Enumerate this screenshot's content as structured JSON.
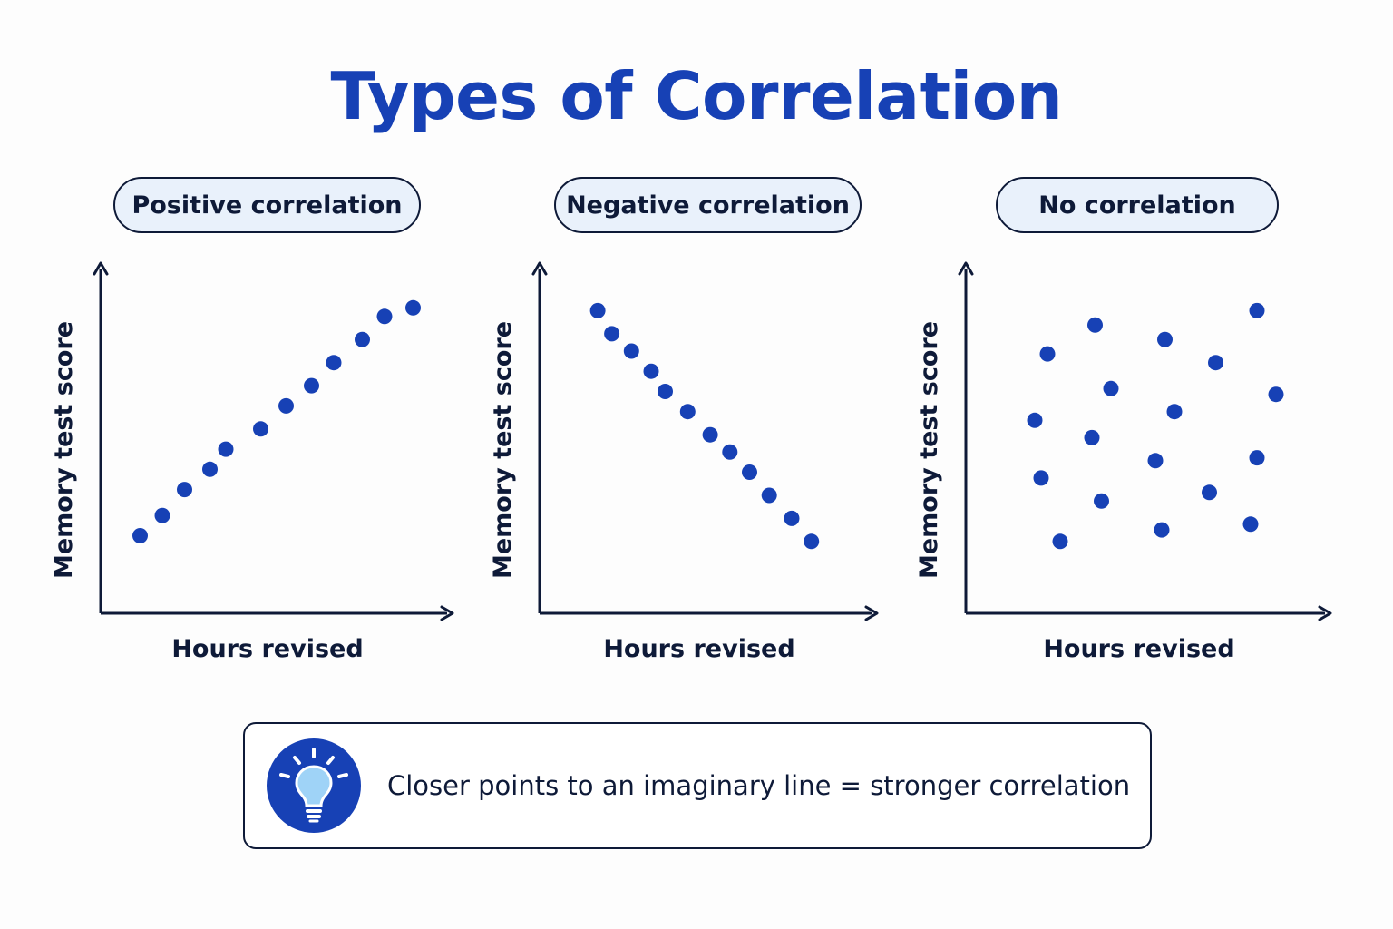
{
  "title": "Types of Correlation",
  "colors": {
    "accent": "#1741b5",
    "dot": "#1741b5",
    "ink": "#0e1a38",
    "pill_bg": "#e9f1fb",
    "bulb": "#9fd3f7"
  },
  "panels": [
    {
      "label": "Positive correlation"
    },
    {
      "label": "Negative correlation"
    },
    {
      "label": "No correlation"
    }
  ],
  "tip": {
    "icon": "lightbulb-icon",
    "text": "Closer points to an imaginary line = stronger correlation"
  },
  "chart_data": [
    {
      "type": "scatter",
      "title": "Positive correlation",
      "xlabel": "Hours revised",
      "ylabel": "Memory test score",
      "xlim": [
        0,
        100
      ],
      "ylim": [
        0,
        100
      ],
      "grid": false,
      "x": [
        7,
        14,
        21,
        29,
        34,
        45,
        53,
        61,
        68,
        77,
        84,
        93
      ],
      "y": [
        14,
        21,
        30,
        37,
        44,
        51,
        59,
        66,
        74,
        82,
        90,
        93
      ]
    },
    {
      "type": "scatter",
      "title": "Negative correlation",
      "xlabel": "Hours revised",
      "ylabel": "Memory test score",
      "xlim": [
        0,
        100
      ],
      "ylim": [
        0,
        100
      ],
      "grid": false,
      "x": [
        11,
        16,
        23,
        30,
        35,
        43,
        51,
        58,
        65,
        72,
        80,
        87
      ],
      "y": [
        92,
        84,
        78,
        71,
        64,
        57,
        49,
        43,
        36,
        28,
        20,
        12
      ]
    },
    {
      "type": "scatter",
      "title": "No correlation",
      "xlabel": "Hours revised",
      "ylabel": "Memory test score",
      "xlim": [
        0,
        100
      ],
      "ylim": [
        0,
        100
      ],
      "grid": false,
      "x": [
        14,
        16,
        18,
        22,
        32,
        33,
        35,
        38,
        52,
        54,
        55,
        58,
        69,
        71,
        82,
        84,
        84,
        90
      ],
      "y": [
        54,
        34,
        77,
        12,
        48,
        87,
        26,
        65,
        40,
        16,
        82,
        57,
        29,
        74,
        18,
        41,
        92,
        63
      ]
    }
  ]
}
